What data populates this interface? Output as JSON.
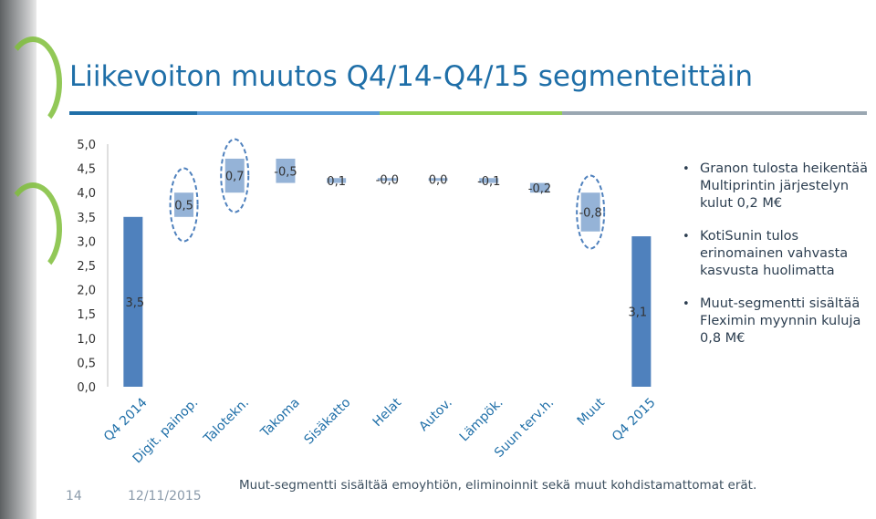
{
  "slide": {
    "title": "Liikevoiton muutos Q4/14-Q4/15 segmenteittäin",
    "page_number": "14",
    "date": "12/11/2015",
    "footnote": "Muut-segmentti sisältää emoyhtiön, eliminoinnit sekä muut kohdistamattomat erät.",
    "bullets": [
      "Granon tulosta heikentää Multiprintin järjestelyn kulut 0,2 M€",
      "KotiSunin tulos erinomainen vahvasta kasvusta huolimatta",
      "Muut-segmentti sisältää Fleximin myynnin kuluja 0,8 M€"
    ],
    "colors": {
      "accent": "#1f6fa8",
      "bar": "#4f81bd",
      "delta_bar": "#95b3d7",
      "highlight_ellipse": "#4f81bd",
      "green": "#92d050"
    }
  },
  "chart_data": {
    "type": "bar",
    "subtype": "waterfall",
    "categories": [
      "Q4 2014",
      "Digit. painop.",
      "Talotekn.",
      "Takoma",
      "Sisäkatto",
      "Helat",
      "Autov.",
      "Lämpök.",
      "Suun terv.h.",
      "Muut",
      "Q4 2015"
    ],
    "values": [
      3.5,
      0.5,
      0.7,
      -0.5,
      0.1,
      -0.0,
      0.0,
      -0.1,
      -0.2,
      -0.8,
      3.1
    ],
    "value_labels": [
      "3,5",
      "0,5",
      "0,7",
      "-0,5",
      "0,1",
      "-0,0",
      "0,0",
      "-0,1",
      "-0,2",
      "-0,8",
      "3,1"
    ],
    "bar_kinds": [
      "total",
      "delta",
      "delta",
      "delta",
      "delta",
      "delta",
      "delta",
      "delta",
      "delta",
      "delta",
      "total"
    ],
    "highlighted": [
      "Digit. painop.",
      "Talotekn.",
      "Muut"
    ],
    "yticks": [
      "0,0",
      "0,5",
      "1,0",
      "1,5",
      "2,0",
      "2,5",
      "3,0",
      "3,5",
      "4,0",
      "4,5",
      "5,0"
    ],
    "ylim": [
      0,
      5
    ],
    "grid": false,
    "legend": "none"
  }
}
